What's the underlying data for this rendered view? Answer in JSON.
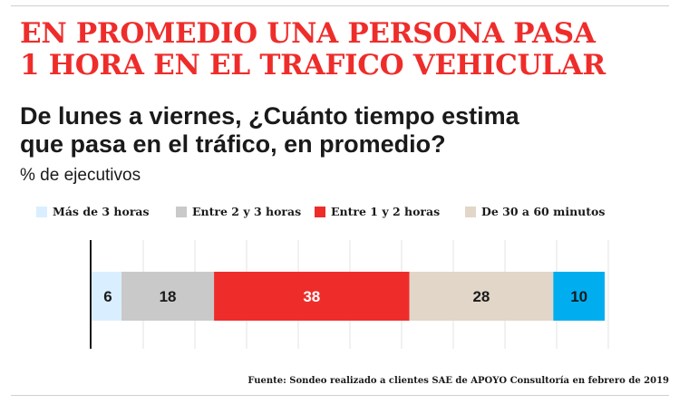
{
  "headline": {
    "line1": "EN PROMEDIO UNA PERSONA PASA",
    "line2": "1 HORA EN EL TRAFICO VEHICULAR"
  },
  "question": {
    "line1": "De lunes a viernes, ¿Cuánto tiempo estima",
    "line2": "que pasa en el tráfico, en promedio?"
  },
  "unit_label": "% de  ejecutivos",
  "source": "Fuente: Sondeo realizado a clientes SAE de APOYO Consultoría en febrero de 2019",
  "colors": {
    "headline": "#ee2d2b",
    "series": [
      "#d9efff",
      "#c9c9c9",
      "#ee2d2b",
      "#e2d6c8",
      "#00aef0"
    ]
  },
  "chart_data": {
    "type": "bar",
    "orientation": "horizontal",
    "stacked": true,
    "categories": [
      ""
    ],
    "xlim": [
      0,
      100
    ],
    "grid": true,
    "legend_position": "top",
    "series": [
      {
        "name": "Más de 3 horas",
        "values": [
          6
        ],
        "color": "#d9efff",
        "label_color": "#1a1a1a"
      },
      {
        "name": "Entre 2 y 3 horas",
        "values": [
          18
        ],
        "color": "#c9c9c9",
        "label_color": "#1a1a1a"
      },
      {
        "name": "Entre 1 y 2 horas",
        "values": [
          38
        ],
        "color": "#ee2d2b",
        "label_color": "#ffffff"
      },
      {
        "name": "De 30 a 60 minutos",
        "values": [
          28
        ],
        "color": "#e2d6c8",
        "label_color": "#1a1a1a"
      },
      {
        "name": "",
        "values": [
          10
        ],
        "color": "#00aef0",
        "label_color": "#1a1a1a"
      }
    ]
  }
}
